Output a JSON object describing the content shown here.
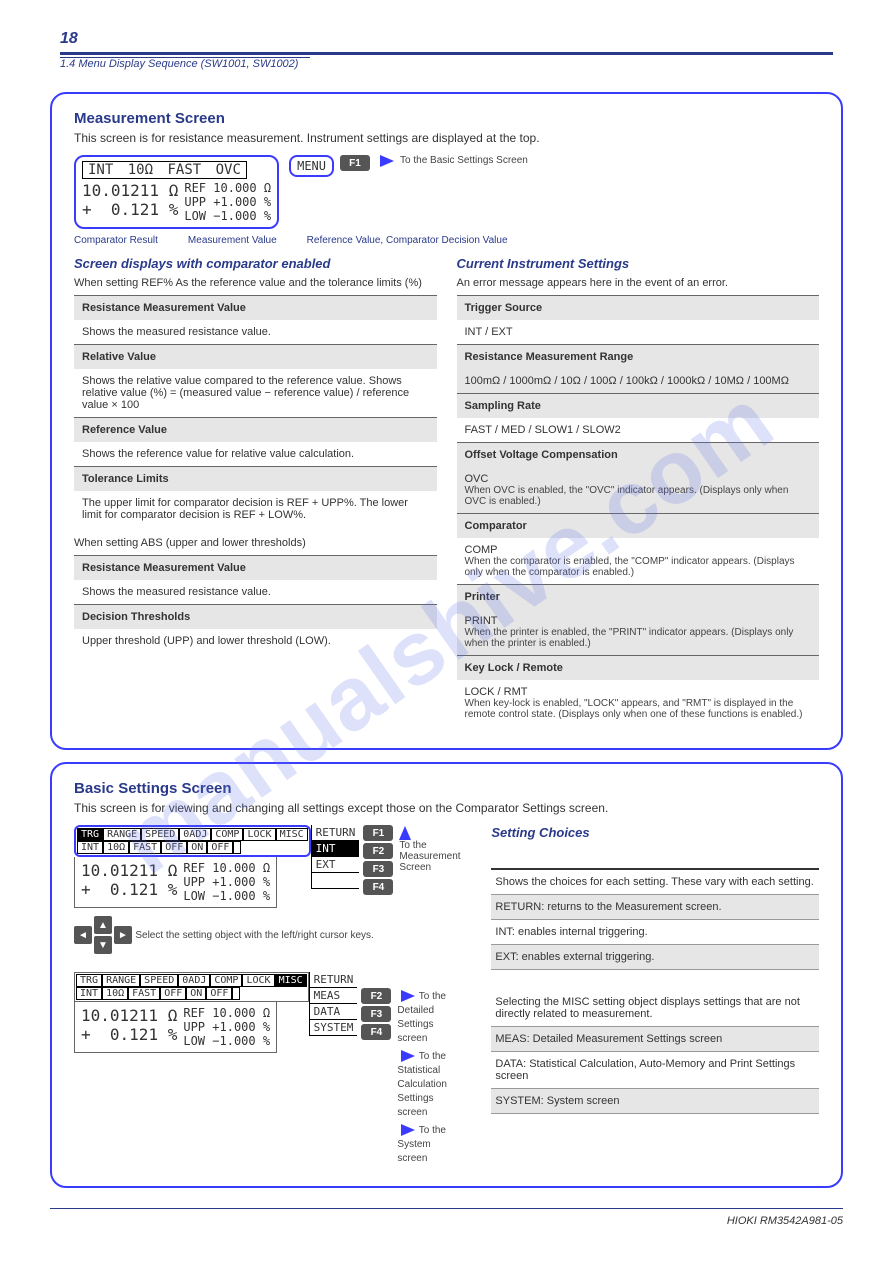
{
  "watermark": "manualshive.com",
  "header": {
    "page_number": "18",
    "section_ref": "1.4  Menu Display Sequence (SW1001, SW1002)"
  },
  "panel_measure": {
    "title": "Measurement Screen",
    "subtitle": "This screen is for resistance measurement. Instrument settings are displayed at the top.",
    "screen": {
      "top_row": {
        "trg": "INT",
        "range": "10Ω",
        "speed": "FAST",
        "ovc": "OVC"
      },
      "main_value": "10.01211",
      "main_unit": "Ω",
      "sub_sign": "+",
      "sub_value": "0.121",
      "sub_unit": "%",
      "ref_label": "REF",
      "ref_value": "10.000",
      "ref_unit": "Ω",
      "upp_label": "UPP",
      "upp_value": "+1.000",
      "upp_unit": "%",
      "low_label": "LOW",
      "low_value": "−1.000",
      "low_unit": "%"
    },
    "menu_box": "MENU",
    "f1": "F1",
    "callout_labels": {
      "comp_result": "Comparator Result",
      "meas_value": "Measurement Value",
      "ref_decision": "Reference Value, Comparator Decision Value"
    },
    "right": {
      "title": "Current Instrument Settings",
      "desc": "An error message appears here in the event of an error.",
      "table": [
        {
          "label": "Trigger Source",
          "opts": "INT / EXT",
          "shade": false
        },
        {
          "label": "Resistance Measurement Range",
          "opts": "100mΩ / 1000mΩ / 10Ω / 100Ω / 100kΩ / 1000kΩ / 10MΩ / 100MΩ",
          "shade": true
        },
        {
          "label": "Sampling Rate",
          "opts": "FAST / MED / SLOW1 / SLOW2",
          "shade": false
        },
        {
          "label": "Offset Voltage Compensation",
          "opts": "OVC",
          "sub": "When OVC is enabled, the \"OVC\" indicator appears. (Displays only when OVC is enabled.)",
          "shade": true
        },
        {
          "label": "Comparator",
          "opts": "COMP",
          "sub": "When the comparator is enabled, the \"COMP\" indicator appears. (Displays only when the comparator is enabled.)",
          "shade": false
        },
        {
          "label": "Printer",
          "opts": "PRINT",
          "sub": "When the printer is enabled, the \"PRINT\" indicator appears. (Displays only when the printer is enabled.)",
          "shade": true
        },
        {
          "label": "Key Lock / Remote",
          "opts": "LOCK / RMT",
          "sub": "When key-lock is enabled, \"LOCK\" appears, and \"RMT\" is displayed in the remote control state. (Displays only when one of these functions is enabled.)",
          "shade": false
        }
      ]
    },
    "left": {
      "title": "Screen displays with comparator enabled",
      "desc": "When setting REF% As the reference value and the tolerance limits (%)",
      "table": [
        {
          "label": "Resistance Measurement Value",
          "desc": "Shows the measured resistance value."
        },
        {
          "label": "Relative Value",
          "desc": "Shows the relative value compared to the reference value. Shows relative value (%) = (measured value − reference value) / reference value × 100"
        },
        {
          "label": "Reference Value",
          "desc": "Shows the reference value for relative value calculation."
        },
        {
          "label": "Tolerance Limits",
          "desc": "The upper limit for comparator decision is REF + UPP%. The lower limit for comparator decision is REF + LOW%."
        }
      ],
      "desc2": "When setting ABS (upper and lower thresholds)",
      "table2": [
        {
          "label": "Resistance Measurement Value",
          "desc": "Shows the measured resistance value."
        },
        {
          "label": "Decision Thresholds",
          "desc": "Upper threshold (UPP) and lower threshold (LOW)."
        }
      ]
    }
  },
  "panel_settings": {
    "title": "Basic Settings Screen",
    "subtitle": "This screen is for viewing and changing all settings except those on the Comparator Settings screen.",
    "screen": {
      "headers": [
        "TRG",
        "RANGE",
        "SPEED",
        "0ADJ",
        "COMP",
        "LOCK",
        "MISC"
      ],
      "values": [
        "INT",
        "10Ω",
        "FAST",
        "OFF",
        "ON",
        "OFF",
        ""
      ],
      "inv_header_idx": 0
    },
    "side_menu": {
      "items": [
        "RETURN",
        "INT",
        "EXT",
        ""
      ],
      "selected_idx": 1
    },
    "fkeys": [
      "F1",
      "F2",
      "F3",
      "F4"
    ],
    "cursor_note": "Select the setting object with the left/right cursor keys.",
    "right": {
      "title": "Setting Choices",
      "rows": [
        {
          "txt": "Shows the choices for each setting. These vary with each setting.",
          "shade": false
        },
        {
          "txt": "RETURN: returns to the Measurement screen.",
          "shade": true
        },
        {
          "txt": "INT: enables internal triggering.",
          "shade": false
        },
        {
          "txt": "EXT: enables external triggering.",
          "shade": true
        }
      ]
    },
    "misc": {
      "headers": [
        "TRG",
        "RANGE",
        "SPEED",
        "0ADJ",
        "COMP",
        "LOCK",
        "MISC"
      ],
      "values": [
        "INT",
        "10Ω",
        "FAST",
        "OFF",
        "ON",
        "OFF",
        ""
      ],
      "inv_header_idx": 6,
      "side_items": [
        "RETURN",
        "MEAS",
        "DATA",
        "SYSTEM"
      ],
      "fkeys": [
        "F2",
        "F3",
        "F4"
      ],
      "right_rows": [
        {
          "txt": "Selecting the MISC setting object displays settings that are not directly related to measurement.",
          "shade": false
        },
        {
          "txt": "MEAS: Detailed Measurement Settings screen",
          "shade": true
        },
        {
          "txt": "DATA: Statistical Calculation, Auto-Memory and Print Settings screen",
          "shade": false
        },
        {
          "txt": "SYSTEM: System screen",
          "shade": true
        }
      ]
    }
  },
  "footer": "HIOKI RM3542A981-05",
  "refs": {
    "to_basic": "To the Basic Settings Screen",
    "to_meas": "To the Measurement Screen",
    "to_detail": "To the Detailed Settings screen",
    "to_stat": "To the Statistical Calculation Settings screen",
    "to_system": "To the System screen"
  }
}
